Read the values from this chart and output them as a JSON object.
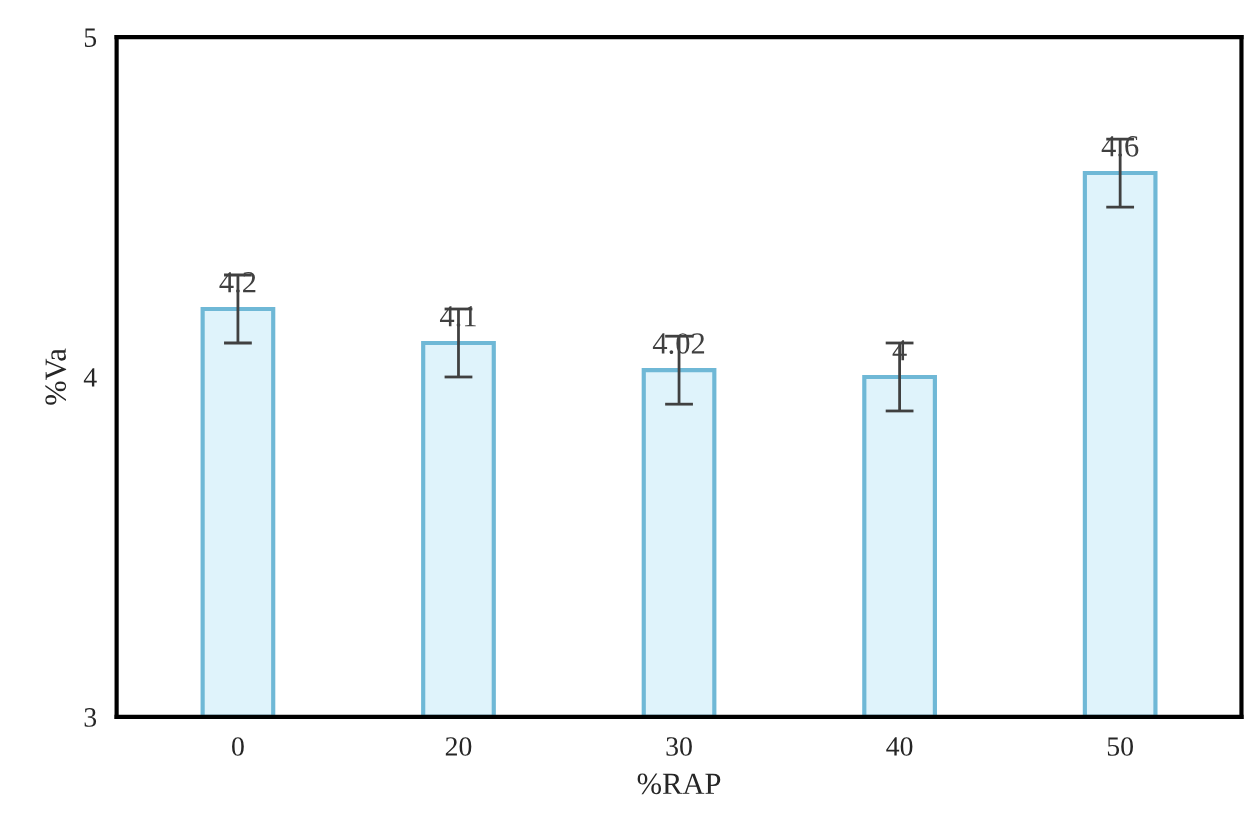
{
  "chart_data": {
    "type": "bar",
    "xlabel": "%RAP",
    "ylabel": "%Va",
    "categories": [
      "0",
      "20",
      "30",
      "40",
      "50"
    ],
    "values": [
      4.2,
      4.1,
      4.02,
      4,
      4.6
    ],
    "errors": [
      0.1,
      0.1,
      0.1,
      0.1,
      0.1
    ],
    "color": "#dff3fb",
    "ylim": [
      3,
      5
    ],
    "yticks": [
      3,
      4,
      5
    ],
    "grid": false,
    "data_labels": true
  }
}
